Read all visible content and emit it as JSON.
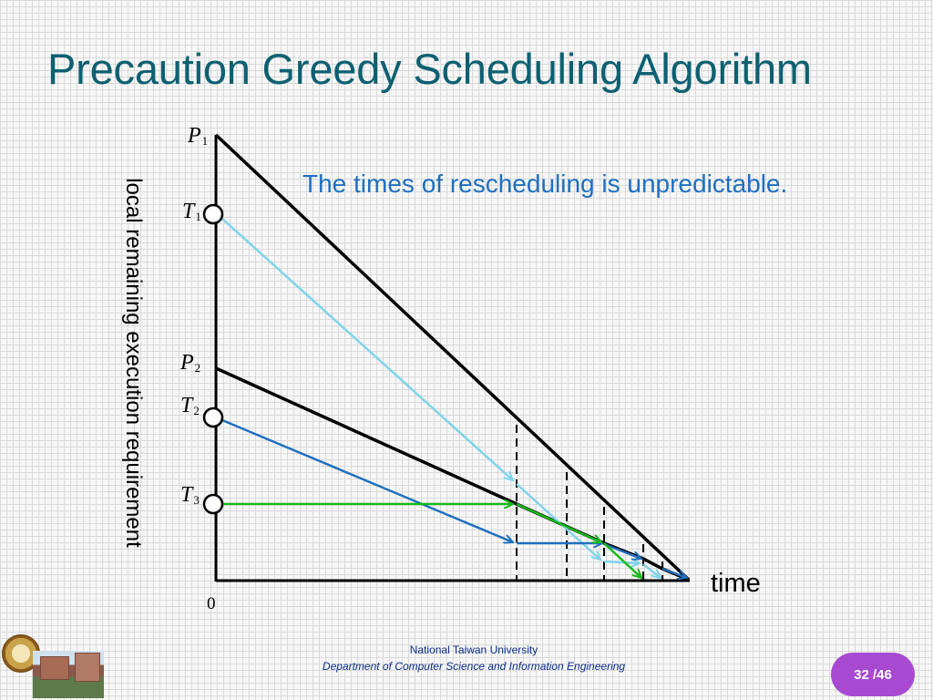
{
  "slide": {
    "title": "Precaution Greedy Scheduling Algorithm",
    "note": "The times of rescheduling is unpredictable."
  },
  "diagram": {
    "ylabel": "local remaining execution requirement",
    "xlabel": "time",
    "origin_label": "0",
    "labels": {
      "p1": {
        "base": "P",
        "sub": "1"
      },
      "t1": {
        "base": "T",
        "sub": "1"
      },
      "p2": {
        "base": "P",
        "sub": "2"
      },
      "t2": {
        "base": "T",
        "sub": "2"
      },
      "t3": {
        "base": "T",
        "sub": "3"
      }
    },
    "colors": {
      "axis": "#000000",
      "t1_arrow": "#7fd3ea",
      "t2_arrow": "#1f6fbf",
      "t3_arrow": "#17b817",
      "title": "#0d6071",
      "note": "#1f6fbf"
    }
  },
  "footer": {
    "university": "National Taiwan University",
    "department": "Department of Computer Science and Information Engineering",
    "page": "32 /46",
    "badge_color": "#a74ad1"
  }
}
